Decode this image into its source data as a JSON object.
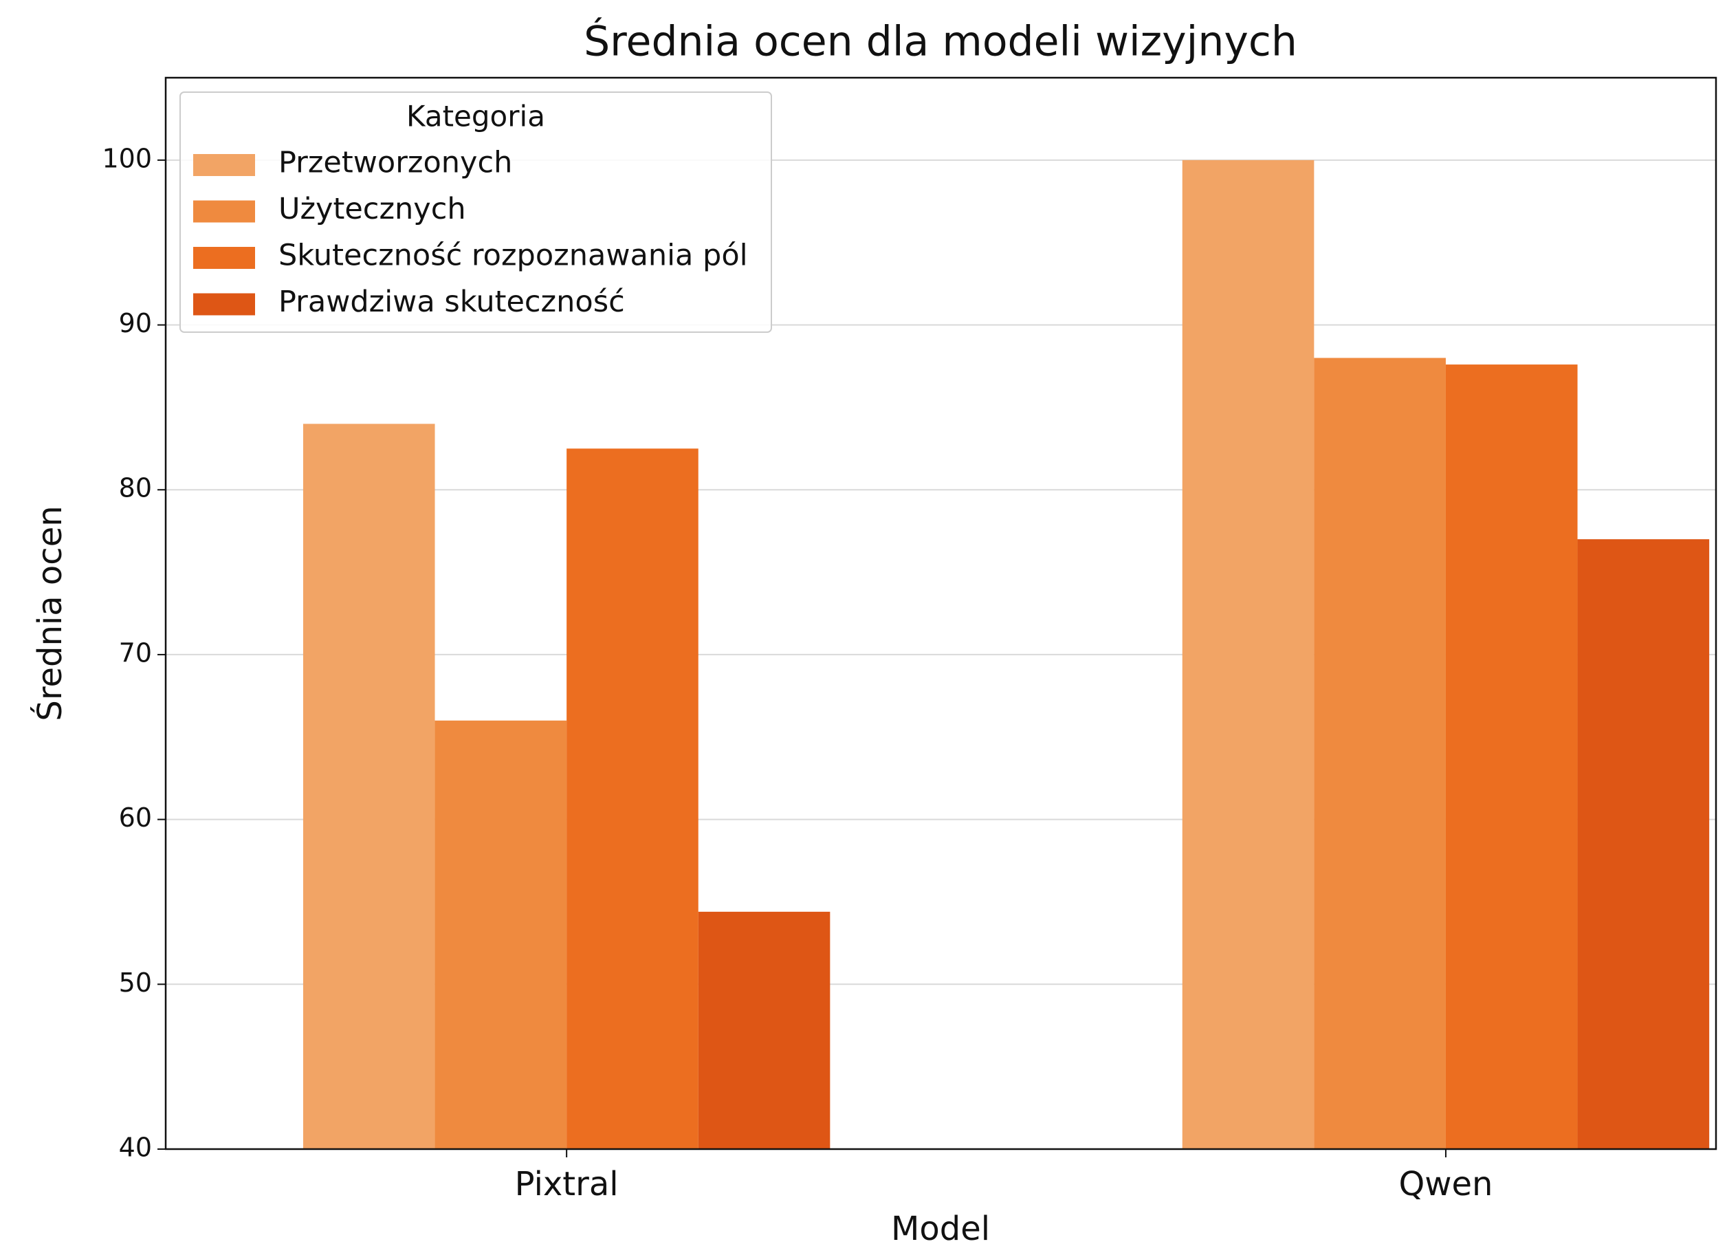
{
  "chart_data": {
    "type": "bar",
    "title": "Średnia ocen dla modeli wizyjnych",
    "xlabel": "Model",
    "ylabel": "Średnia ocen",
    "categories": [
      "Pixtral",
      "Qwen"
    ],
    "series": [
      {
        "name": "Przetworzonych",
        "color": "#f2a465",
        "values": [
          84,
          100
        ]
      },
      {
        "name": "Użytecznych",
        "color": "#ef8a3f",
        "values": [
          66,
          88
        ]
      },
      {
        "name": "Skuteczność rozpoznawania pól",
        "color": "#ec6e20",
        "values": [
          82.5,
          87.6
        ]
      },
      {
        "name": "Prawdziwa skuteczność",
        "color": "#de5615",
        "values": [
          54.4,
          77
        ]
      }
    ],
    "ylim": [
      40,
      105
    ],
    "yticks": [
      40,
      50,
      60,
      70,
      80,
      90,
      100
    ],
    "grid": true,
    "legend_title": "Kategoria",
    "legend": "upper left"
  }
}
